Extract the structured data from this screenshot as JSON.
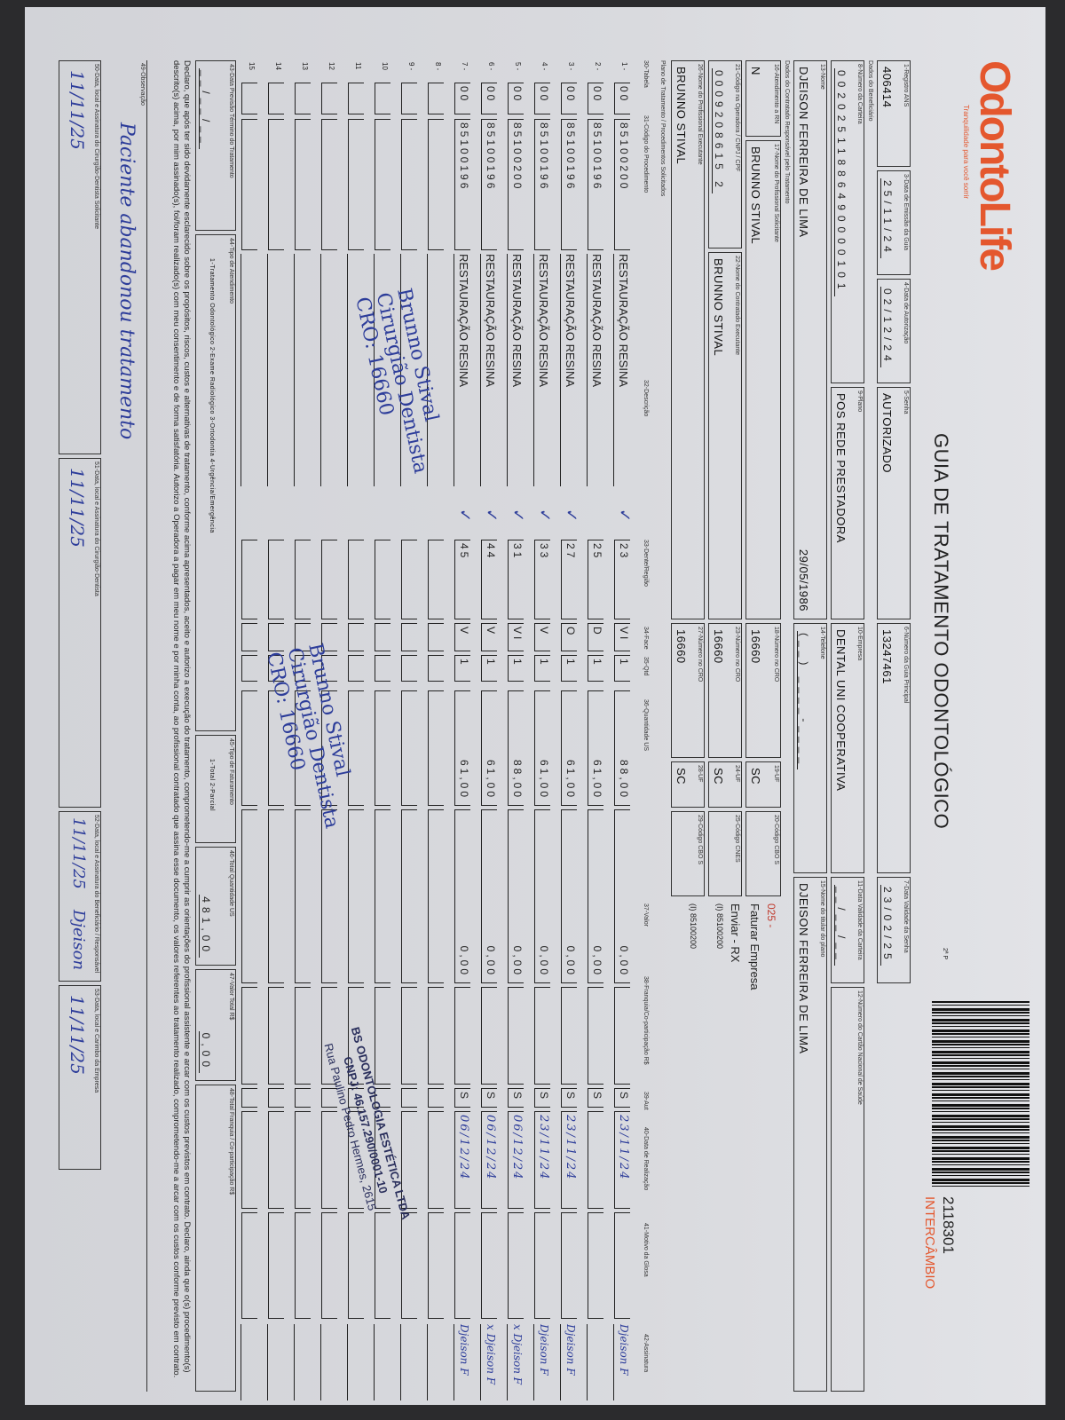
{
  "header": {
    "logo": "OdontoLife",
    "logo_tagline": "Tranquilidade para você sorrir",
    "title": "GUIA DE TRATAMENTO ODONTOLÓGICO",
    "copy": "2ª P",
    "guide_number": "2118301",
    "guide_type": "INTERCÂMBIO",
    "brand_color": "#e4572e"
  },
  "guide": {
    "f1_label": "1-Registro ANS",
    "f1": "406414",
    "f3_label": "3-Data de Emissão da Guia",
    "f3": "25/11/24",
    "f4_label": "4-Data de Autorização",
    "f4": "02/12/24",
    "f5_label": "5-Senha",
    "f5": "AUTORIZADO",
    "f6_label": "6-Número da Guia Principal",
    "f6": "13247461",
    "f7_label": "7-Data Validade da Senha",
    "f7": "23/02/25"
  },
  "beneficiary": {
    "section": "Dados do Beneficiário",
    "f8_label": "8-Número da Carteira",
    "f8": "00202511886490000101",
    "f9_label": "9-Plano",
    "f9": "POS REDE PRESTADORA",
    "f10_label": "10-Empresa",
    "f10": "DENTAL UNI  COOPERATIVA",
    "f11_label": "11-Data Validade da Carteira",
    "f11": "__/__/__",
    "f12_label": "12-Número do Cartão Nacional de Saúde",
    "f13_label": "13-Nome",
    "f13": "DJEISON FERREIRA DE LIMA",
    "birth": "29/05/1986",
    "f14_label": "14-Telefone",
    "f14": "(__) ____-____",
    "f15_label": "15-Nome do titular do plano",
    "f15": "DJEISON FERREIRA DE LIMA"
  },
  "contractor": {
    "section": "Dados do Contratado Responsável pelo Tratamento",
    "f16_label": "16-Atendimento a RN",
    "f16": "N",
    "f17_label": "17-Nome do Profissional Solicitante",
    "f17": "BRUNNO STIVAL",
    "f18_label": "18-Número no CRO",
    "f18": "16660",
    "f19_label": "19-UF",
    "f19": "SC",
    "f20_label": "20-Código CBO S",
    "note1_code": "025 -",
    "note1": "Faturar Empresa",
    "f21_label": "21-Código na Operadora / CNPJ / CPF",
    "f21": "0009208615 2",
    "f22_label": "22-Nome do Contratado Executante",
    "f22": "BRUNNO STIVAL",
    "f23_label": "23-Número no CRO",
    "f23": "16660",
    "f24_label": "24-UF",
    "f24": "SC",
    "f25_label": "25-Código CNES",
    "note2": "Enviar - RX",
    "note3": "(I) 85100200",
    "f26_label": "26-Nome do Profissional Executante",
    "f26": "BRUNNO STIVAL",
    "f27_label": "27-Número no CRO",
    "f27": "16660",
    "f28_label": "28-UF",
    "f28": "SC",
    "f29_label": "29-Código CBO S",
    "note4": "(I) 85100200"
  },
  "plan": {
    "section": "Plano de Tratamento / Procedimentos Solicitados",
    "columns": [
      "30-Tabela",
      "31-Código do Procedimento",
      "32-Descrição",
      "33-Dente/Região",
      "34-Face",
      "35-Qtd",
      "36-Quantidade US",
      "37-Valor",
      "38-Franquia/Co-participação R$",
      "39-Aut",
      "40-Data de Realização",
      "41-Motivo da Glosa",
      "42-Assinatura"
    ],
    "rows": [
      {
        "n": "1 -",
        "tabela": "00",
        "code": "85100200",
        "desc": "RESTAURAÇÃO RESINA",
        "check": "✓",
        "tooth": "23",
        "face": "VI",
        "qty": "1",
        "us": "88,00",
        "valor": "0,00",
        "aut": "S",
        "date": "23/11/24",
        "sig": "Djeison F"
      },
      {
        "n": "2 -",
        "tabela": "00",
        "code": "85100196",
        "desc": "RESTAURAÇÃO RESINA",
        "check": "",
        "tooth": "25",
        "face": "D",
        "qty": "1",
        "us": "61,00",
        "valor": "0,00",
        "aut": "S",
        "date": "",
        "sig": ""
      },
      {
        "n": "3 -",
        "tabela": "00",
        "code": "85100196",
        "desc": "RESTAURAÇÃO RESINA",
        "check": "✓",
        "tooth": "27",
        "face": "O",
        "qty": "1",
        "us": "61,00",
        "valor": "0,00",
        "aut": "S",
        "date": "23/11/24",
        "sig": "Djeison F"
      },
      {
        "n": "4 -",
        "tabela": "00",
        "code": "85100196",
        "desc": "RESTAURAÇÃO RESINA",
        "check": "✓",
        "tooth": "33",
        "face": "V",
        "qty": "1",
        "us": "61,00",
        "valor": "0,00",
        "aut": "S",
        "date": "23/11/24",
        "sig": "Djeison F"
      },
      {
        "n": "5 -",
        "tabela": "00",
        "code": "85100200",
        "desc": "RESTAURAÇÃO RESINA",
        "check": "✓",
        "tooth": "31",
        "face": "VI",
        "qty": "1",
        "us": "88,00",
        "valor": "0,00",
        "aut": "S",
        "date": "06/12/24",
        "sig": "x Djeison F"
      },
      {
        "n": "6 -",
        "tabela": "00",
        "code": "85100196",
        "desc": "RESTAURAÇÃO RESINA",
        "check": "✓",
        "tooth": "44",
        "face": "V",
        "qty": "1",
        "us": "61,00",
        "valor": "0,00",
        "aut": "S",
        "date": "06/12/24",
        "sig": "x Djeison F"
      },
      {
        "n": "7 -",
        "tabela": "00",
        "code": "85100196",
        "desc": "RESTAURAÇÃO RESINA",
        "check": "✓",
        "tooth": "45",
        "face": "V",
        "qty": "1",
        "us": "61,00",
        "valor": "0,00",
        "aut": "S",
        "date": "06/12/24",
        "sig": "Djeison F"
      },
      {
        "n": "8 -"
      },
      {
        "n": "9 -"
      },
      {
        "n": "10"
      },
      {
        "n": "11"
      },
      {
        "n": "12"
      },
      {
        "n": "13"
      },
      {
        "n": "14"
      },
      {
        "n": "15"
      }
    ]
  },
  "totals": {
    "f43_label": "43-Data Previsão Término do Tratamento",
    "f43": "__/__/__",
    "f44_label": "44-Tipo de Atendimento",
    "f44_options": "1-Tratamento Odontológico  2-Exame Radiológico  3-Ortodontia  4-Urgência/Emergência",
    "f45_label": "45-Tipo de Faturamento",
    "f45_options": "1-Total  2-Parcial",
    "f46_label": "46-Total Quantidade US",
    "f46": "481,00",
    "f47_label": "47-Valor Total R$",
    "f47": "0,00",
    "f48_label": "48-Total Franquia / Co-participação R$"
  },
  "declaration": "Declaro, que após ter sido devidamente esclarecido sobre os propósitos, riscos, custos e alternativas de tratamento, conforme acima apresentados, aceito e autorizo a execução do tratamento, comprometendo-me a cumprir as orientações do profissional assistente e arcar com os custos previstos em contrato. Declaro, ainda que o(s) procedimento(s) descrito(s) acima, por mim assinado(s), foi/foram realizado(s) com meu consentimento e de forma satisfatória. Autorizo a Operadora a pagar em meu nome e por minha conta, ao profissional contratado que assina esse documento, os valores referentes ao tratamento realizado, comprometendo-me a arcar com os custos conforme previsto em contrato.",
  "observation": {
    "label": "49-Observação",
    "text": "Paciente abandonou tratamento"
  },
  "signatures": {
    "f50_label": "50-Data, local e Assinatura do Cirurgião-Dentista Solicitante",
    "f50_date": "11/11/25",
    "f51_label": "51-Data, local e Assinatura do Cirurgião-Dentista",
    "f51_date": "11/11/25",
    "f52_label": "52-Data, local e Assinatura do Beneficiário / Responsável",
    "f52_date": "11/11/25",
    "f52_sig": "Djeison",
    "f53_label": "53-Data, local e Carimbo da Empresa",
    "f53_date": "11/11/25"
  },
  "stamps": {
    "dentist_name": "Brunno Stival",
    "dentist_title": "Cirurgião Dentista",
    "dentist_cro": "CRO: 16660",
    "company": "BS ODONTOLOGIA ESTÉTICA LTDA",
    "cnpj": "CNPJ: 46.157.290/0001-10",
    "address": "Rua Paulino Pedro Hermes, 2615"
  }
}
